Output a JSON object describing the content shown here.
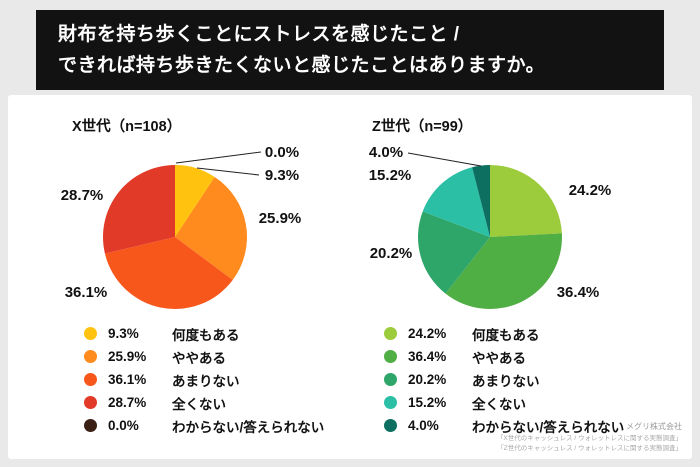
{
  "header": {
    "title_lines": [
      "財布を持ち歩くことにストレスを感じたこと /",
      "できれば持ち歩きたくないと感じたことはありますか。"
    ]
  },
  "chart_data": [
    {
      "type": "pie",
      "title": "X世代（n=108）",
      "categories": [
        "何度もある",
        "ややある",
        "あまりない",
        "全くない",
        "わからない/答えられない"
      ],
      "values": [
        9.3,
        25.9,
        36.1,
        28.7,
        0.0
      ],
      "colors": [
        "#FFC20E",
        "#FF8A1E",
        "#F8571C",
        "#E23A28",
        "#3A2014"
      ],
      "unit": "%",
      "start_angle_deg": 0,
      "direction": "clockwise",
      "legend_position": "bottom"
    },
    {
      "type": "pie",
      "title": "Z世代（n=99）",
      "categories": [
        "何度もある",
        "ややある",
        "あまりない",
        "全くない",
        "わからない/答えられない"
      ],
      "values": [
        24.2,
        36.4,
        20.2,
        15.2,
        4.0
      ],
      "colors": [
        "#9CCB3C",
        "#4FAE44",
        "#2EA669",
        "#2BBFA6",
        "#0C6F60"
      ],
      "unit": "%",
      "start_angle_deg": 0,
      "direction": "clockwise",
      "legend_position": "bottom"
    }
  ],
  "footer": {
    "company": "メグリ株式会社",
    "sources": [
      "「X世代のキャッシュレス / ウォレットレスに関する実態調査」",
      "「Z世代のキャッシュレス / ウォレットレスに関する実態調査」"
    ]
  }
}
